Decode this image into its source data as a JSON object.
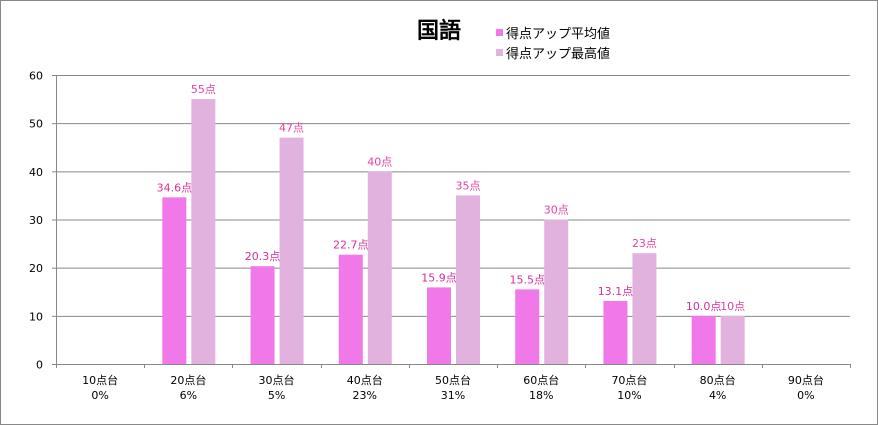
{
  "chart_data": {
    "type": "bar",
    "title": "国語",
    "categories": [
      "10点台\n0%",
      "20点台\n6%",
      "30点台\n5%",
      "40点台\n23%",
      "50点台\n31%",
      "60点台\n18%",
      "70点台\n10%",
      "80点台\n4%",
      "90点台\n0%"
    ],
    "category_labels": [
      "10点台",
      "20点台",
      "30点台",
      "40点台",
      "50点台",
      "60点台",
      "70点台",
      "80点台",
      "90点台"
    ],
    "category_percents": [
      "0%",
      "6%",
      "5%",
      "23%",
      "31%",
      "18%",
      "10%",
      "4%",
      "0%"
    ],
    "series": [
      {
        "name": "得点アップ平均値",
        "color": "#f078e8",
        "label_color": "#d62f9c",
        "values": [
          null,
          34.6,
          20.3,
          22.7,
          15.9,
          15.5,
          13.1,
          10.0,
          null
        ],
        "labels": [
          null,
          "34.6点",
          "20.3点",
          "22.7点",
          "15.9点",
          "15.5点",
          "13.1点",
          "10.0点",
          null
        ]
      },
      {
        "name": "得点アップ最高値",
        "color": "#e2b2de",
        "label_color": "#e8409f",
        "values": [
          null,
          55,
          47,
          40,
          35,
          30,
          23,
          10,
          null
        ],
        "labels": [
          null,
          "55点",
          "47点",
          "40点",
          "35点",
          "30点",
          "23点",
          "10点",
          null
        ]
      }
    ],
    "xlabel": "",
    "ylabel": "",
    "ylim": [
      0,
      60
    ],
    "yticks": [
      0,
      10,
      20,
      30,
      40,
      50,
      60
    ],
    "grid": true,
    "legend": "top-right of title"
  }
}
